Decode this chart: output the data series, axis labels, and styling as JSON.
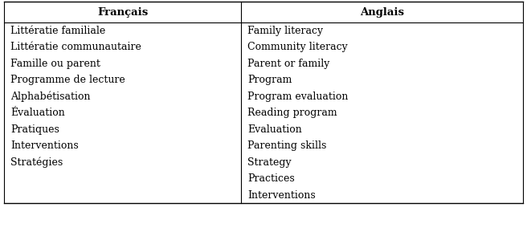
{
  "col1_header": "Français",
  "col2_header": "Anglais",
  "col1_items": [
    "Littératie familiale",
    "Littératie communautaire",
    "Famille ou parent",
    "Programme de lecture",
    "Alphabétisation",
    "Évaluation",
    "Pratiques",
    "Interventions",
    "Stratégies"
  ],
  "col2_items": [
    "Family literacy",
    "Community literacy",
    "Parent or family",
    "Program",
    "Program evaluation",
    "Reading program",
    "Evaluation",
    "Parenting skills",
    "Strategy",
    "Practices",
    "Interventions"
  ],
  "background_color": "#ffffff",
  "header_font_size": 9.5,
  "body_font_size": 9.0,
  "line_color": "#000000",
  "fig_width": 6.56,
  "fig_height": 2.94,
  "dpi": 100
}
